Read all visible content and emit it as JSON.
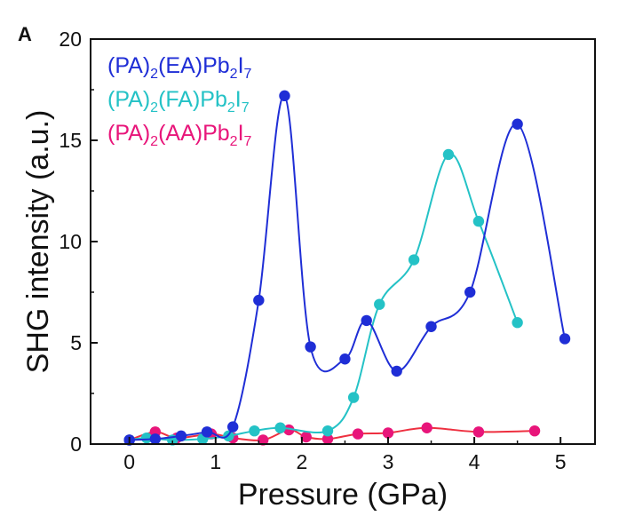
{
  "chart_data": {
    "type": "line",
    "panel_label": "A",
    "xlabel": "Pressure (GPa)",
    "ylabel": "SHG intensity (a.u.)",
    "xlim": [
      -0.45,
      5.4
    ],
    "ylim": [
      0,
      20
    ],
    "xticks": [
      0,
      1,
      2,
      3,
      4,
      5
    ],
    "yticks": [
      0,
      5,
      10,
      15,
      20
    ],
    "grid": false,
    "legend_position": "top-left",
    "series": [
      {
        "name": "(PA)2(EA)Pb2I7",
        "legend_parts": [
          [
            "(PA)",
            ""
          ],
          [
            "2",
            "sub"
          ],
          [
            "(EA)Pb",
            ""
          ],
          [
            "2",
            "sub"
          ],
          [
            "I",
            ""
          ],
          [
            "7",
            "sub"
          ]
        ],
        "color": "#1f2ed6",
        "line_color": "#1f2ed6",
        "x": [
          0.0,
          0.3,
          0.6,
          0.9,
          1.2,
          1.5,
          1.8,
          2.1,
          2.5,
          2.75,
          3.1,
          3.5,
          3.95,
          4.5,
          5.05
        ],
        "y": [
          0.2,
          0.25,
          0.4,
          0.6,
          0.85,
          7.1,
          17.2,
          4.8,
          4.2,
          6.1,
          3.6,
          5.8,
          7.5,
          15.8,
          5.2
        ]
      },
      {
        "name": "(PA)2(FA)Pb2I7",
        "legend_parts": [
          [
            "(PA)",
            ""
          ],
          [
            "2",
            "sub"
          ],
          [
            "(FA)Pb",
            ""
          ],
          [
            "2",
            "sub"
          ],
          [
            "I",
            ""
          ],
          [
            "7",
            "sub"
          ]
        ],
        "color": "#24c2c6",
        "line_color": "#24c2c6",
        "x": [
          0.0,
          0.2,
          0.5,
          0.85,
          1.15,
          1.45,
          1.75,
          2.3,
          2.6,
          2.9,
          3.3,
          3.7,
          4.05,
          4.5
        ],
        "y": [
          0.2,
          0.3,
          0.2,
          0.25,
          0.4,
          0.65,
          0.8,
          0.65,
          2.3,
          6.9,
          9.1,
          14.3,
          11.0,
          6.0
        ]
      },
      {
        "name": "(PA)2(AA)Pb2I7",
        "legend_parts": [
          [
            "(PA)",
            ""
          ],
          [
            "2",
            "sub"
          ],
          [
            "(AA)Pb",
            ""
          ],
          [
            "2",
            "sub"
          ],
          [
            "I",
            ""
          ],
          [
            "7",
            "sub"
          ]
        ],
        "color": "#e8157a",
        "line_color": "#ee3040",
        "x": [
          0.0,
          0.3,
          0.55,
          0.95,
          1.2,
          1.55,
          1.85,
          2.05,
          2.3,
          2.65,
          3.0,
          3.45,
          4.05,
          4.7
        ],
        "y": [
          0.2,
          0.6,
          0.3,
          0.5,
          0.3,
          0.2,
          0.7,
          0.35,
          0.25,
          0.5,
          0.55,
          0.8,
          0.6,
          0.65
        ]
      }
    ]
  }
}
